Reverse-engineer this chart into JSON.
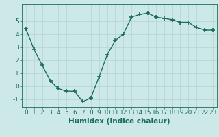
{
  "x": [
    0,
    1,
    2,
    3,
    4,
    5,
    6,
    7,
    8,
    9,
    10,
    11,
    12,
    13,
    14,
    15,
    16,
    17,
    18,
    19,
    20,
    21,
    22,
    23
  ],
  "y": [
    4.4,
    2.8,
    1.6,
    0.4,
    -0.2,
    -0.4,
    -0.4,
    -1.2,
    -0.9,
    0.7,
    2.4,
    3.5,
    4.0,
    5.3,
    5.5,
    5.6,
    5.3,
    5.2,
    5.1,
    4.9,
    4.9,
    4.5,
    4.3,
    4.3
  ],
  "line_color": "#1a6b5e",
  "marker": "+",
  "marker_size": 4,
  "marker_lw": 1.2,
  "bg_color": "#cce9e7",
  "grid_color": "#b8d8d5",
  "xlabel": "Humidex (Indice chaleur)",
  "xlim": [
    -0.5,
    23.5
  ],
  "ylim": [
    -1.6,
    6.3
  ],
  "yticks": [
    -1,
    0,
    1,
    2,
    3,
    4,
    5
  ],
  "xticks": [
    0,
    1,
    2,
    3,
    4,
    5,
    6,
    7,
    8,
    9,
    10,
    11,
    12,
    13,
    14,
    15,
    16,
    17,
    18,
    19,
    20,
    21,
    22,
    23
  ],
  "xlabel_fontsize": 7.5,
  "tick_fontsize": 6.5,
  "line_width": 1.0
}
